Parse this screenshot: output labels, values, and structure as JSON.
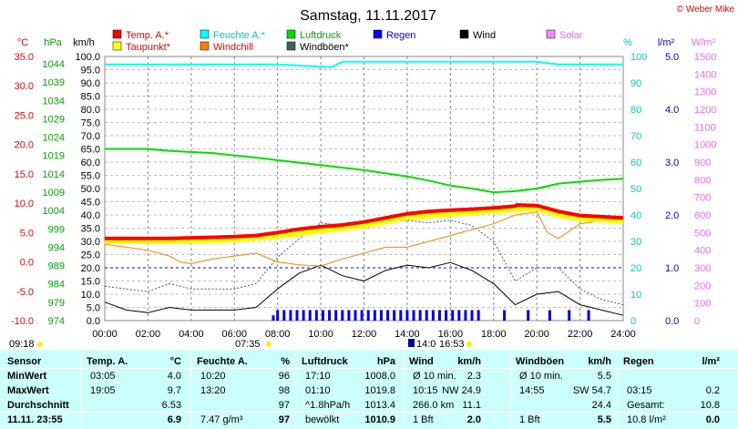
{
  "title": "Samstag, 11.11.2017",
  "credit": "© Weber Mike",
  "legend": [
    {
      "label": "Temp. A.*",
      "color": "#ff0000",
      "text_color": "#ff0000"
    },
    {
      "label": "Feuchte A.*",
      "color": "#00ffff",
      "text_color": "#00cccc"
    },
    {
      "label": "Luftdruck",
      "color": "#00dd00",
      "text_color": "#00aa00"
    },
    {
      "label": "Regen",
      "color": "#0000ff",
      "text_color": "#0000ff"
    },
    {
      "label": "Wind",
      "color": "#000000",
      "text_color": "#000000"
    },
    {
      "label": "Solar",
      "color": "#ff88ff",
      "text_color": "#ff66ff"
    },
    {
      "label": "Taupunkt*",
      "color": "#ffff00",
      "text_color": "#ff0000"
    },
    {
      "label": "Windchill",
      "color": "#ff8000",
      "text_color": "#ff0000"
    },
    {
      "label": "Windböen*",
      "color": "#406060",
      "text_color": "#000000"
    }
  ],
  "axes": {
    "temp": {
      "unit": "°C",
      "color": "#ff0000",
      "ticks": [
        "35.0",
        "30.0",
        "25.0",
        "20.0",
        "15.0",
        "10.0",
        "5.0",
        "0.0",
        "-5.0",
        "-10.0"
      ]
    },
    "pressure": {
      "unit": "hPa",
      "color": "#00aa00",
      "ticks": [
        "1044",
        "1039",
        "1034",
        "1029",
        "1024",
        "1019",
        "1014",
        "1009",
        "1004",
        "999",
        "994",
        "989",
        "984",
        "979",
        "974"
      ]
    },
    "wind": {
      "unit": "km/h",
      "color": "#000000",
      "ticks": [
        "100.0",
        "95.0",
        "90.0",
        "85.0",
        "80.0",
        "75.0",
        "70.0",
        "65.0",
        "60.0",
        "55.0",
        "50.0",
        "45.0",
        "40.0",
        "35.0",
        "30.0",
        "25.0",
        "20.0",
        "15.0",
        "10.0",
        "5.0",
        "0.0"
      ]
    },
    "humidity": {
      "unit": "%",
      "color": "#00cccc",
      "ticks": [
        "100",
        "90",
        "80",
        "70",
        "60",
        "50",
        "40",
        "30",
        "20",
        "10",
        "0"
      ]
    },
    "rain": {
      "unit": "l/m²",
      "color": "#0000ff",
      "ticks": [
        "5.0",
        "4.0",
        "3.0",
        "2.0",
        "1.0",
        "0.0"
      ]
    },
    "solar": {
      "unit": "W/m²",
      "color": "#ff66ff",
      "ticks": [
        "1500",
        "1400",
        "1300",
        "1200",
        "1100",
        "1000",
        "900",
        "800",
        "700",
        "600",
        "500",
        "400",
        "300",
        "200",
        "100",
        "0"
      ]
    }
  },
  "time_ticks": [
    "00:00",
    "02:00",
    "04:00",
    "06:00",
    "08:00",
    "10:00",
    "12:00",
    "14:00",
    "16:00",
    "18:00",
    "20:00",
    "22:00",
    "24:00"
  ],
  "sun_events": {
    "sunrise": "07:35",
    "sunset": "16:53",
    "left_label": "09:18",
    "moon_label": "14:0"
  },
  "chart_data": {
    "type": "line",
    "title": "Samstag, 11.11.2017",
    "x_unit": "hour",
    "xlim": [
      0,
      24
    ],
    "series": [
      {
        "name": "Temp. A.*",
        "axis": "temp",
        "x": [
          0,
          1,
          2,
          3,
          4,
          5,
          6,
          7,
          8,
          9,
          10,
          11,
          12,
          13,
          14,
          15,
          16,
          17,
          18,
          19,
          19.08,
          20,
          21,
          22,
          23,
          24
        ],
        "values": [
          4.0,
          4.0,
          4.0,
          4.0,
          4.1,
          4.2,
          4.3,
          4.5,
          5.0,
          5.6,
          6.0,
          6.3,
          6.8,
          7.5,
          8.2,
          8.6,
          8.8,
          9.0,
          9.2,
          9.5,
          9.7,
          9.6,
          8.6,
          7.9,
          7.7,
          7.5
        ]
      },
      {
        "name": "Taupunkt*",
        "axis": "temp",
        "x": [
          0,
          2,
          4,
          6,
          8,
          10,
          12,
          14,
          16,
          18,
          20,
          21,
          22,
          24
        ],
        "values": [
          3.5,
          3.5,
          3.6,
          3.8,
          4.4,
          5.3,
          6.2,
          7.6,
          8.2,
          8.7,
          9.2,
          8.0,
          7.4,
          7.0
        ]
      },
      {
        "name": "Feuchte A.*",
        "axis": "humidity",
        "x": [
          0,
          4,
          8,
          10.5,
          11,
          13.33,
          16,
          20,
          21,
          22,
          24
        ],
        "values": [
          97,
          97,
          97,
          96,
          98,
          98,
          98,
          98,
          97,
          97,
          97
        ]
      },
      {
        "name": "Luftdruck",
        "axis": "pressure",
        "x": [
          0,
          2,
          3,
          5,
          7,
          8,
          10,
          12,
          14,
          15,
          16,
          17,
          18,
          19,
          20,
          21,
          22,
          23,
          24
        ],
        "values": [
          1019.5,
          1019.5,
          1019.0,
          1018.4,
          1017.2,
          1016.5,
          1015.2,
          1013.9,
          1012.2,
          1011.1,
          1009.8,
          1009.0,
          1008.0,
          1008.3,
          1009.0,
          1010.3,
          1010.8,
          1011.3,
          1011.6
        ]
      },
      {
        "name": "Windchill",
        "axis": "temp",
        "x": [
          0,
          1,
          2,
          3,
          3.5,
          4,
          5,
          6,
          7,
          8,
          9,
          10,
          11,
          12,
          13,
          14,
          15,
          16,
          17,
          18,
          19,
          20,
          20.5,
          21,
          22,
          23,
          24
        ],
        "values": [
          3.0,
          2.5,
          2.0,
          1.0,
          0.0,
          -0.3,
          0.5,
          1.0,
          1.5,
          0.0,
          -0.5,
          -0.7,
          0.5,
          1.5,
          2.5,
          2.5,
          3.5,
          4.5,
          5.5,
          6.5,
          8.0,
          8.5,
          5.0,
          4.0,
          6.5,
          7.0,
          7.0
        ]
      },
      {
        "name": "Wind",
        "axis": "wind",
        "x": [
          0,
          1,
          2,
          3,
          4,
          5,
          6,
          7,
          8,
          9,
          10,
          11,
          12,
          13,
          14,
          15,
          16,
          17,
          18,
          19,
          20,
          21,
          22,
          23,
          24
        ],
        "values": [
          7,
          4,
          3,
          5,
          4,
          4,
          4,
          5,
          12,
          18,
          21,
          17,
          15,
          19,
          21,
          20,
          22,
          19,
          14,
          6,
          10,
          11,
          6,
          4,
          2
        ]
      },
      {
        "name": "Windböen*",
        "axis": "wind",
        "x": [
          0,
          1,
          2,
          3,
          4,
          5,
          6,
          7,
          8,
          9,
          10,
          11,
          12,
          13,
          14,
          15,
          16,
          17,
          18,
          19,
          20,
          21,
          22,
          23,
          24
        ],
        "values": [
          13,
          12,
          11,
          14,
          12,
          12,
          12,
          14,
          24,
          31,
          37,
          36,
          35,
          37,
          38,
          37,
          38,
          36,
          30,
          15,
          20,
          20,
          12,
          8,
          6
        ]
      },
      {
        "name": "Regen",
        "axis": "rain",
        "type": "bars",
        "x": [
          7.8,
          8.0,
          8.3,
          8.6,
          8.9,
          9.2,
          9.5,
          9.8,
          10.1,
          10.4,
          10.7,
          11.0,
          11.3,
          11.6,
          11.9,
          12.2,
          12.5,
          12.8,
          13.1,
          13.4,
          13.7,
          14.0,
          14.3,
          14.6,
          14.9,
          15.2,
          15.5,
          15.8,
          16.1,
          16.4,
          16.7,
          17.0,
          17.3,
          18.5,
          19.6,
          20.6,
          21.5,
          22.4
        ],
        "values": [
          0.1,
          0.2,
          0.2,
          0.2,
          0.2,
          0.2,
          0.2,
          0.2,
          0.2,
          0.2,
          0.2,
          0.2,
          0.2,
          0.2,
          0.2,
          0.2,
          0.2,
          0.2,
          0.2,
          0.2,
          0.2,
          0.2,
          0.2,
          0.2,
          0.2,
          0.2,
          0.2,
          0.2,
          0.2,
          0.2,
          0.2,
          0.2,
          0.2,
          0.2,
          0.2,
          0.2,
          0.2,
          0.2
        ]
      },
      {
        "name": "Regen Gesamt",
        "axis": "rain",
        "x": [
          0,
          24
        ],
        "values": [
          1.0,
          1.0
        ]
      }
    ]
  },
  "table": {
    "col_headers": [
      {
        "label": "Sensor",
        "unit": ""
      },
      {
        "label": "Temp. A.",
        "unit": "°C"
      },
      {
        "label": "Feuchte A.",
        "unit": "%"
      },
      {
        "label": "Luftdruck",
        "unit": "hPa"
      },
      {
        "label": "Wind",
        "unit": "km/h"
      },
      {
        "label": "Windböen",
        "unit": "km/h"
      },
      {
        "label": "Regen",
        "unit": "l/m²"
      }
    ],
    "rows": [
      {
        "label": "MinWert",
        "cells": [
          [
            "03:05",
            "4.0"
          ],
          [
            "10:20",
            "96"
          ],
          [
            "17:10",
            "1008.0"
          ],
          [
            "Ø 10 min.",
            "2.3"
          ],
          [
            "Ø 10 min.",
            "5.5"
          ],
          [
            "",
            ""
          ]
        ]
      },
      {
        "label": "MaxWert",
        "cells": [
          [
            "19:05",
            "9.7"
          ],
          [
            "13:20",
            "98"
          ],
          [
            "01:10",
            "1019.8"
          ],
          [
            "10:15",
            "NW 24.9"
          ],
          [
            "14:55",
            "SW 54.7"
          ],
          [
            "03:15",
            "0.2"
          ]
        ]
      },
      {
        "label": "Durchschnitt",
        "cells": [
          [
            "",
            "6.53"
          ],
          [
            "",
            "97"
          ],
          [
            "^1.8hPa/h",
            "1013.4"
          ],
          [
            "266.0 km",
            "11.1"
          ],
          [
            "",
            "24.4"
          ],
          [
            "Gesamt:",
            "10.8"
          ]
        ]
      },
      {
        "label": "11.11. 23:55",
        "cells": [
          [
            "",
            "6.9"
          ],
          [
            "7.47 g/m³",
            "97"
          ],
          [
            "bewölkt",
            "1010.9"
          ],
          [
            "1 Bft",
            "2.0"
          ],
          [
            "1 Bft",
            "5.5"
          ],
          [
            "10.8 l/m²",
            "0.0"
          ]
        ]
      }
    ]
  }
}
